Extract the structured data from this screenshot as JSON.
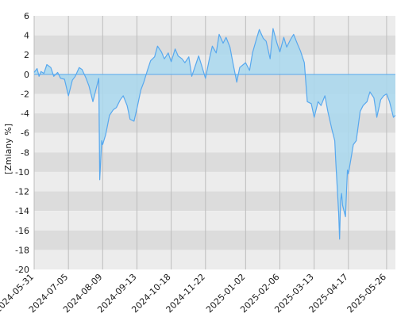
{
  "chart_data": {
    "type": "area",
    "ylabel": "[Zmiany %]",
    "ylim": [
      -20,
      6
    ],
    "yticks": [
      6,
      4,
      2,
      0,
      -2,
      -4,
      -6,
      -8,
      -10,
      -12,
      -14,
      -16,
      -18,
      -20
    ],
    "xlim": [
      "2024-05-31",
      "2025-06-04"
    ],
    "xticks": [
      "2024-05-31",
      "2024-07-05",
      "2024-08-09",
      "2024-09-13",
      "2024-10-18",
      "2024-11-22",
      "2025-01-02",
      "2025-02-06",
      "2025-03-13",
      "2025-04-17",
      "2025-05-26"
    ],
    "grid": "vertical lines at x ticks, alternating horizontal bands",
    "colors": {
      "line": "#58a8ee",
      "fill": "#a9d8ef",
      "band_dark": "#dcdcdc",
      "band_light": "#ececec",
      "gridline": "#bdbdbd",
      "zero_line": "#58a8ee"
    },
    "x": [
      "2024-05-31",
      "2024-06-03",
      "2024-06-05",
      "2024-06-07",
      "2024-06-10",
      "2024-06-13",
      "2024-06-17",
      "2024-06-20",
      "2024-06-24",
      "2024-06-27",
      "2024-07-01",
      "2024-07-05",
      "2024-07-09",
      "2024-07-12",
      "2024-07-16",
      "2024-07-19",
      "2024-07-23",
      "2024-07-26",
      "2024-07-30",
      "2024-08-02",
      "2024-08-05",
      "2024-08-06",
      "2024-08-08",
      "2024-08-09",
      "2024-08-12",
      "2024-08-14",
      "2024-08-16",
      "2024-08-20",
      "2024-08-23",
      "2024-08-27",
      "2024-08-30",
      "2024-09-03",
      "2024-09-06",
      "2024-09-10",
      "2024-09-13",
      "2024-09-17",
      "2024-09-20",
      "2024-09-24",
      "2024-09-27",
      "2024-10-01",
      "2024-10-04",
      "2024-10-08",
      "2024-10-11",
      "2024-10-15",
      "2024-10-18",
      "2024-10-22",
      "2024-10-25",
      "2024-10-29",
      "2024-11-01",
      "2024-11-05",
      "2024-11-08",
      "2024-11-12",
      "2024-11-15",
      "2024-11-19",
      "2024-11-22",
      "2024-11-26",
      "2024-11-29",
      "2024-12-03",
      "2024-12-06",
      "2024-12-10",
      "2024-12-13",
      "2024-12-17",
      "2024-12-20",
      "2024-12-24",
      "2024-12-27",
      "2025-01-02",
      "2025-01-06",
      "2025-01-09",
      "2025-01-13",
      "2025-01-16",
      "2025-01-20",
      "2025-01-23",
      "2025-01-27",
      "2025-01-30",
      "2025-02-03",
      "2025-02-06",
      "2025-02-10",
      "2025-02-13",
      "2025-02-17",
      "2025-02-20",
      "2025-02-24",
      "2025-02-27",
      "2025-03-03",
      "2025-03-06",
      "2025-03-10",
      "2025-03-13",
      "2025-03-17",
      "2025-03-20",
      "2025-03-24",
      "2025-03-27",
      "2025-03-31",
      "2025-04-03",
      "2025-04-04",
      "2025-04-07",
      "2025-04-08",
      "2025-04-09",
      "2025-04-10",
      "2025-04-11",
      "2025-04-14",
      "2025-04-16",
      "2025-04-17",
      "2025-04-22",
      "2025-04-25",
      "2025-04-29",
      "2025-05-02",
      "2025-05-06",
      "2025-05-09",
      "2025-05-13",
      "2025-05-16",
      "2025-05-20",
      "2025-05-23",
      "2025-05-26",
      "2025-05-29",
      "2025-06-02",
      "2025-06-04"
    ],
    "series": [
      {
        "values": [
          0.2,
          0.6,
          -0.2,
          0.3,
          0.1,
          1.0,
          0.7,
          -0.2,
          0.2,
          -0.4,
          -0.5,
          -2.2,
          -0.6,
          -0.2,
          0.7,
          0.5,
          -0.4,
          -1.2,
          -2.8,
          -1.6,
          -0.4,
          -10.8,
          -6.8,
          -7.2,
          -6.2,
          -5.2,
          -4.2,
          -3.6,
          -3.4,
          -2.6,
          -2.2,
          -3.2,
          -4.6,
          -4.8,
          -3.5,
          -1.6,
          -0.8,
          0.5,
          1.4,
          1.8,
          2.9,
          2.3,
          1.6,
          2.2,
          1.3,
          2.6,
          1.9,
          1.6,
          1.2,
          1.8,
          -0.2,
          1.0,
          1.9,
          0.6,
          -0.4,
          1.6,
          2.9,
          2.2,
          4.1,
          3.2,
          3.8,
          2.8,
          1.2,
          -0.8,
          0.7,
          1.2,
          0.4,
          2.2,
          3.6,
          4.6,
          3.7,
          3.4,
          1.6,
          4.7,
          3.2,
          2.3,
          3.8,
          2.8,
          3.6,
          4.1,
          3.1,
          2.4,
          1.2,
          -2.8,
          -3.0,
          -4.4,
          -2.8,
          -3.2,
          -2.2,
          -3.8,
          -5.6,
          -6.8,
          -8.8,
          -14.2,
          -16.9,
          -13.0,
          -12.2,
          -13.4,
          -14.6,
          -9.8,
          -10.2,
          -7.2,
          -6.8,
          -3.8,
          -3.2,
          -2.8,
          -1.8,
          -2.4,
          -4.4,
          -2.6,
          -2.2,
          -2.0,
          -2.8,
          -4.4,
          -4.2
        ]
      }
    ]
  }
}
